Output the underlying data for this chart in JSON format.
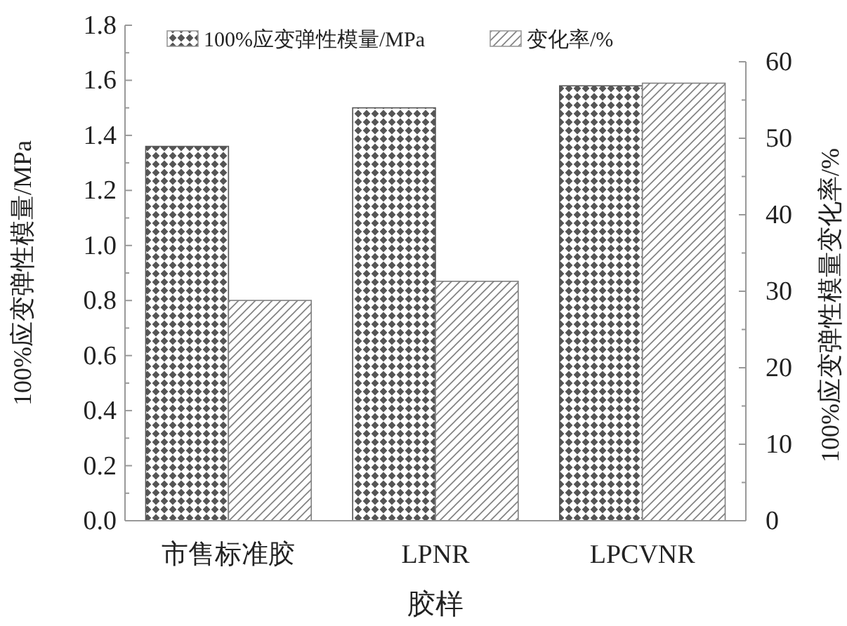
{
  "chart_data": {
    "type": "bar",
    "xlabel": "胶样",
    "ylabel": "100%应变弹性模量/MPa",
    "y2label": "100%应变弹性模量变化率/%",
    "categories": [
      "市售标准胶",
      "LPNR",
      "LPCVNR"
    ],
    "series": [
      {
        "name": "100%应变弹性模量/MPa",
        "color": "#555555",
        "values": [
          1.36,
          1.5,
          1.58
        ]
      },
      {
        "name": "变化率/%",
        "color": "#808080",
        "axis": "y2",
        "values": [
          28.8,
          31.3,
          57.2
        ]
      }
    ],
    "ylim": [
      0,
      1.8
    ],
    "yticks": [
      {
        "value": 0,
        "label": "0.0"
      },
      {
        "value": 0.2,
        "label": "0.2"
      },
      {
        "value": 0.4,
        "label": "0.4"
      },
      {
        "value": 0.6,
        "label": "0.6"
      },
      {
        "value": 0.8,
        "label": "0.8"
      },
      {
        "value": 1.0,
        "label": "1.0"
      },
      {
        "value": 1.2,
        "label": "1.2"
      },
      {
        "value": 1.4,
        "label": "1.4"
      },
      {
        "value": 1.6,
        "label": "1.6"
      },
      {
        "value": 1.8,
        "label": "1.8"
      }
    ],
    "y2lim": [
      0,
      60
    ],
    "y2ticks": [
      0,
      10,
      20,
      30,
      40,
      50,
      60
    ],
    "legend": "top",
    "grid": false
  }
}
